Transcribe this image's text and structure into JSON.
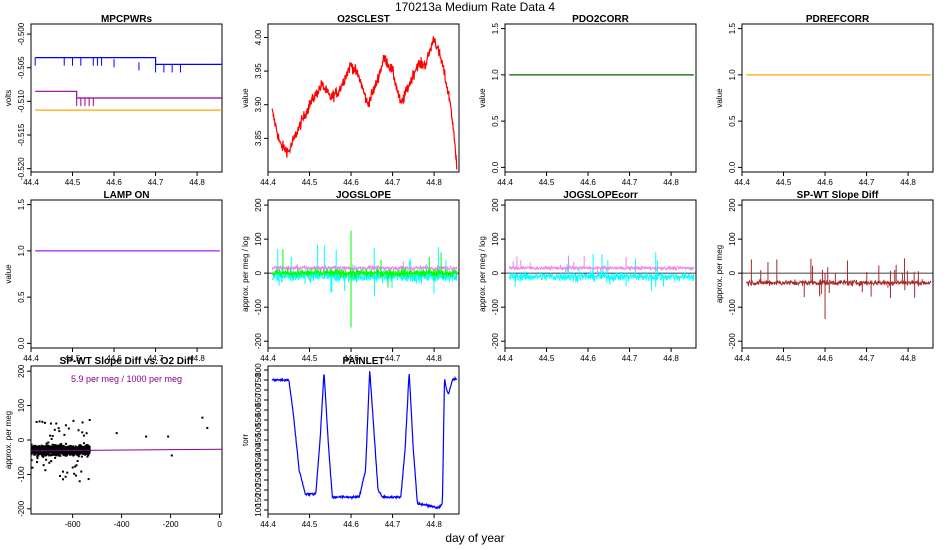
{
  "page": {
    "title": "170213a   Medium Rate Data 4",
    "xlabel": "day of year"
  },
  "chart_data": [
    {
      "id": "mpcpwrs",
      "type": "line",
      "title": "MPCPWRs",
      "ylabel": "volts",
      "xlim": [
        44.4,
        44.86
      ],
      "ylim": [
        -0.5205,
        -0.4985
      ],
      "xticks": [
        44.4,
        44.5,
        44.6,
        44.7,
        44.8
      ],
      "xticklabels": [
        "44.4",
        "44.5",
        "44.6",
        "44.7",
        "44.8"
      ],
      "yticks": [
        -0.52,
        -0.515,
        -0.51,
        -0.505,
        -0.5
      ],
      "yticklabels": [
        "-0.520",
        "-0.515",
        "-0.510",
        "-0.505",
        "-0.500"
      ],
      "series": [
        {
          "color": "#0000ff",
          "mode": "step",
          "x": [
            44.41,
            44.57,
            44.7,
            44.81,
            44.86
          ],
          "y": [
            -0.5035,
            -0.5035,
            -0.5045,
            -0.5045,
            -0.5035
          ]
        },
        {
          "color": "#990099",
          "mode": "step",
          "x": [
            44.41,
            44.51,
            44.86
          ],
          "y": [
            -0.5085,
            -0.5095,
            -0.5095
          ]
        },
        {
          "color": "#ffa500",
          "mode": "line",
          "x": [
            44.41,
            44.86
          ],
          "y": [
            -0.5113,
            -0.5113
          ]
        }
      ]
    },
    {
      "id": "o2sclest",
      "type": "line",
      "title": "O2SCLEST",
      "ylabel": "value",
      "xlim": [
        44.4,
        44.86
      ],
      "ylim": [
        3.8,
        4.02
      ],
      "xticks": [
        44.4,
        44.5,
        44.6,
        44.7,
        44.8
      ],
      "xticklabels": [
        "44.4",
        "44.5",
        "44.6",
        "44.7",
        "44.8"
      ],
      "yticks": [
        3.85,
        3.9,
        3.95,
        4.0
      ],
      "yticklabels": [
        "3.85",
        "3.90",
        "3.95",
        "4.00"
      ],
      "series": [
        {
          "color": "#ff0000",
          "mode": "line",
          "noise": 0.006,
          "x": [
            44.41,
            44.43,
            44.45,
            44.47,
            44.5,
            44.53,
            44.55,
            44.57,
            44.6,
            44.62,
            44.64,
            44.66,
            44.68,
            44.7,
            44.72,
            44.74,
            44.76,
            44.78,
            44.8,
            44.82,
            44.84,
            44.855
          ],
          "y": [
            3.89,
            3.84,
            3.83,
            3.86,
            3.9,
            3.93,
            3.91,
            3.92,
            3.96,
            3.94,
            3.9,
            3.93,
            3.97,
            3.95,
            3.9,
            3.93,
            3.96,
            3.96,
            4.0,
            3.96,
            3.9,
            3.81
          ]
        }
      ]
    },
    {
      "id": "pdo2corr",
      "type": "line",
      "title": "PDO2CORR",
      "ylabel": "value",
      "xlim": [
        44.4,
        44.86
      ],
      "ylim": [
        -0.05,
        1.55
      ],
      "xticks": [
        44.4,
        44.5,
        44.6,
        44.7,
        44.8
      ],
      "xticklabels": [
        "44.4",
        "44.5",
        "44.6",
        "44.7",
        "44.8"
      ],
      "yticks": [
        0,
        0.5,
        1.0,
        1.5
      ],
      "yticklabels": [
        "0.0",
        "0.5",
        "1.0",
        "1.5"
      ],
      "series": [
        {
          "color": "#006400",
          "mode": "line",
          "x": [
            44.41,
            44.855
          ],
          "y": [
            1.0,
            1.0
          ]
        }
      ]
    },
    {
      "id": "pdrefcorr",
      "type": "line",
      "title": "PDREFCORR",
      "ylabel": "value",
      "xlim": [
        44.4,
        44.86
      ],
      "ylim": [
        -0.05,
        1.55
      ],
      "xticks": [
        44.4,
        44.5,
        44.6,
        44.7,
        44.8
      ],
      "xticklabels": [
        "44.4",
        "44.5",
        "44.6",
        "44.7",
        "44.8"
      ],
      "yticks": [
        0,
        0.5,
        1.0,
        1.5
      ],
      "yticklabels": [
        "0.0",
        "0.5",
        "1.0",
        "1.5"
      ],
      "series": [
        {
          "color": "#ffa500",
          "mode": "line",
          "x": [
            44.41,
            44.855
          ],
          "y": [
            1.0,
            1.0
          ]
        }
      ]
    },
    {
      "id": "lampon",
      "type": "line",
      "title": "LAMP ON",
      "ylabel": "value",
      "xlim": [
        44.4,
        44.86
      ],
      "ylim": [
        -0.05,
        1.55
      ],
      "xticks": [
        44.4,
        44.5,
        44.6,
        44.7,
        44.8
      ],
      "xticklabels": [
        "44.4",
        "44.5",
        "44.6",
        "44.7",
        "44.8"
      ],
      "yticks": [
        0,
        0.5,
        1.0,
        1.5
      ],
      "yticklabels": [
        "0.0",
        "0.5",
        "1.0",
        "1.5"
      ],
      "series": [
        {
          "color": "#a020f0",
          "mode": "line",
          "x": [
            44.41,
            44.855
          ],
          "y": [
            1.0,
            1.0
          ]
        }
      ]
    },
    {
      "id": "jogslope",
      "type": "line",
      "title": "JOGSLOPE",
      "ylabel": "approx. per meg / log",
      "xlim": [
        44.4,
        44.86
      ],
      "ylim": [
        -220,
        215
      ],
      "xticks": [
        44.4,
        44.5,
        44.6,
        44.7,
        44.8
      ],
      "xticklabels": [
        "44.4",
        "44.5",
        "44.6",
        "44.7",
        "44.8"
      ],
      "yticks": [
        -200,
        -100,
        0,
        100,
        200
      ],
      "yticklabels": [
        "-200",
        "-100",
        "0",
        "100",
        "200"
      ],
      "hline": 0,
      "series": [
        {
          "color": "#00ffff",
          "mode": "noise",
          "x": [
            44.41,
            44.855
          ],
          "y": [
            -10,
            -10
          ],
          "noise": 12,
          "spikes": 25,
          "spike_amp": 80
        },
        {
          "color": "#ee82ee",
          "mode": "noise",
          "x": [
            44.41,
            44.855
          ],
          "y": [
            15,
            15
          ],
          "noise": 5,
          "spikes": 8,
          "spike_amp": 20
        },
        {
          "color": "#00ff00",
          "mode": "noise",
          "x": [
            44.41,
            44.855
          ],
          "y": [
            0,
            0
          ],
          "noise": 9,
          "spikes": 12,
          "spike_amp": 60
        }
      ],
      "spike_events": [
        {
          "color": "#00ff00",
          "x": 44.6,
          "y": 125
        },
        {
          "color": "#00ff00",
          "x": 44.6,
          "y": -160
        }
      ]
    },
    {
      "id": "jogslopecorr",
      "type": "line",
      "title": "JOGSLOPEcorr",
      "ylabel": "approx. per meg / log",
      "xlim": [
        44.4,
        44.86
      ],
      "ylim": [
        -220,
        215
      ],
      "xticks": [
        44.4,
        44.5,
        44.6,
        44.7,
        44.8
      ],
      "xticklabels": [
        "44.4",
        "44.5",
        "44.6",
        "44.7",
        "44.8"
      ],
      "yticks": [
        -200,
        -100,
        0,
        100,
        200
      ],
      "yticklabels": [
        "-200",
        "-100",
        "0",
        "100",
        "200"
      ],
      "hline": 0,
      "series": [
        {
          "color": "#00ffff",
          "mode": "noise",
          "x": [
            44.41,
            44.855
          ],
          "y": [
            -10,
            -10
          ],
          "noise": 10,
          "spikes": 22,
          "spike_amp": 60
        },
        {
          "color": "#ee82ee",
          "mode": "noise",
          "x": [
            44.41,
            44.855
          ],
          "y": [
            15,
            15
          ],
          "noise": 4,
          "spikes": 20,
          "spike_amp": 30
        }
      ]
    },
    {
      "id": "spwtslope",
      "type": "line",
      "title": "SP-WT Slope Diff",
      "ylabel": "approx. per meg",
      "xlim": [
        44.4,
        44.86
      ],
      "ylim": [
        -220,
        215
      ],
      "xticks": [
        44.4,
        44.5,
        44.6,
        44.7,
        44.8
      ],
      "xticklabels": [
        "44.4",
        "44.5",
        "44.6",
        "44.7",
        "44.8"
      ],
      "yticks": [
        -200,
        -100,
        0,
        100,
        200
      ],
      "yticklabels": [
        "-200",
        "-100",
        "0",
        "100",
        "200"
      ],
      "hline": 0,
      "series": [
        {
          "color": "#a52a2a",
          "mode": "noise",
          "x": [
            44.41,
            44.855
          ],
          "y": [
            -28,
            -28
          ],
          "noise": 6,
          "spikes": 35,
          "spike_amp": 60
        }
      ],
      "spike_events": [
        {
          "color": "#a52a2a",
          "x": 44.6,
          "y": -135
        }
      ]
    },
    {
      "id": "scatter",
      "type": "scatter",
      "title": "SP-WT Slope Diff vs. O2 Diff",
      "ylabel": "approx. per meg",
      "xlim": [
        -770,
        10
      ],
      "ylim": [
        -215,
        215
      ],
      "xticks": [
        -600,
        -400,
        -200,
        0
      ],
      "xticklabels": [
        "-600",
        "-400",
        "-200",
        "0"
      ],
      "yticks": [
        -200,
        -100,
        0,
        100,
        200
      ],
      "yticklabels": [
        "-200",
        "-100",
        "0",
        "100",
        "200"
      ],
      "annotation": {
        "text": "5.9 per meg / 1000 per meg",
        "color": "#8b008b"
      },
      "cluster": {
        "xmin": -770,
        "xmax": -530,
        "ymean": -30,
        "ysd": 10,
        "n": 900,
        "outliers": 60
      },
      "fit": {
        "color": "#8b008b",
        "slope": 0.0059,
        "intercept": -27
      },
      "extra_points": [
        {
          "x": -420,
          "y": 20
        },
        {
          "x": -300,
          "y": 10
        },
        {
          "x": -210,
          "y": 10
        },
        {
          "x": -70,
          "y": 65
        },
        {
          "x": -50,
          "y": 35
        },
        {
          "x": -195,
          "y": -45
        }
      ]
    },
    {
      "id": "painlet",
      "type": "line",
      "title": "PAINLET",
      "ylabel": "torr",
      "xlim": [
        44.4,
        44.86
      ],
      "ylim": [
        80,
        820
      ],
      "xticks": [
        44.4,
        44.5,
        44.6,
        44.7,
        44.8
      ],
      "xticklabels": [
        "44.4",
        "44.5",
        "44.6",
        "44.7",
        "44.8"
      ],
      "yticks": [
        100,
        150,
        200,
        250,
        300,
        350,
        400,
        450,
        500,
        550,
        600,
        650,
        700,
        750,
        800
      ],
      "yticklabels": [
        "100",
        "150",
        "200",
        "250",
        "300",
        "350",
        "400",
        "450",
        "500",
        "550",
        "600",
        "650",
        "700",
        "750",
        "800"
      ],
      "series": [
        {
          "color": "#0000ff",
          "mode": "line",
          "noise": 4,
          "x": [
            44.41,
            44.45,
            44.46,
            44.475,
            44.49,
            44.515,
            44.525,
            44.535,
            44.545,
            44.555,
            44.57,
            44.62,
            44.635,
            44.645,
            44.655,
            44.665,
            44.675,
            44.72,
            44.73,
            44.74,
            44.75,
            44.76,
            44.77,
            44.81,
            44.82,
            44.825,
            44.83,
            44.835,
            44.845,
            44.855
          ],
          "y": [
            750,
            750,
            600,
            300,
            180,
            180,
            440,
            790,
            440,
            165,
            165,
            165,
            300,
            800,
            500,
            200,
            165,
            165,
            400,
            790,
            400,
            130,
            130,
            110,
            130,
            760,
            700,
            680,
            755,
            755
          ]
        }
      ]
    }
  ]
}
